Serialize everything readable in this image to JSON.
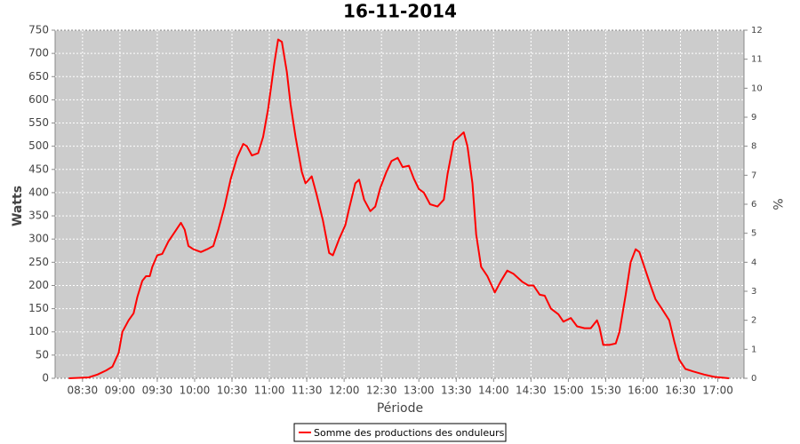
{
  "chart_data": {
    "type": "line",
    "title": "16-11-2014",
    "x_label": "Période",
    "y_label": "Watts",
    "y2_label": "%",
    "x": [
      "08:19",
      "08:35",
      "08:42",
      "08:49",
      "08:54",
      "08:59",
      "09:02",
      "09:07",
      "09:11",
      "09:14",
      "09:18",
      "09:21",
      "09:24",
      "09:26",
      "09:30",
      "09:34",
      "09:39",
      "09:44",
      "09:49",
      "09:52",
      "09:55",
      "09:59",
      "10:05",
      "10:10",
      "10:15",
      "10:19",
      "10:24",
      "10:29",
      "10:34",
      "10:39",
      "10:42",
      "10:46",
      "10:51",
      "10:55",
      "10:59",
      "11:04",
      "11:07",
      "11:10",
      "11:14",
      "11:17",
      "11:21",
      "11:26",
      "11:29",
      "11:34",
      "11:38",
      "11:43",
      "11:48",
      "11:51",
      "11:56",
      "12:01",
      "12:04",
      "12:09",
      "12:12",
      "12:16",
      "12:21",
      "12:25",
      "12:29",
      "12:34",
      "12:38",
      "12:43",
      "12:47",
      "12:52",
      "12:56",
      "13:00",
      "13:04",
      "13:09",
      "13:15",
      "13:20",
      "13:23",
      "13:28",
      "13:32",
      "13:36",
      "13:39",
      "13:43",
      "13:46",
      "13:50",
      "13:55",
      "14:01",
      "14:06",
      "14:11",
      "14:16",
      "14:23",
      "14:28",
      "14:32",
      "14:37",
      "14:41",
      "14:46",
      "14:52",
      "14:56",
      "15:02",
      "15:07",
      "15:13",
      "15:18",
      "15:23",
      "15:25",
      "15:28",
      "15:33",
      "15:38",
      "15:41",
      "15:46",
      "15:50",
      "15:54",
      "15:57",
      "16:01",
      "16:06",
      "16:10",
      "16:15",
      "16:21",
      "16:25",
      "16:29",
      "16:34",
      "16:40",
      "16:49",
      "16:57",
      "17:09"
    ],
    "series": [
      {
        "name": "Somme des productions des onduleurs",
        "color": "#ff0000",
        "values": [
          0,
          2,
          8,
          17,
          25,
          55,
          100,
          125,
          140,
          175,
          210,
          220,
          220,
          240,
          265,
          268,
          295,
          315,
          335,
          320,
          285,
          278,
          272,
          278,
          285,
          320,
          370,
          430,
          475,
          505,
          500,
          480,
          485,
          520,
          580,
          680,
          730,
          725,
          660,
          590,
          520,
          445,
          420,
          435,
          395,
          340,
          270,
          265,
          300,
          330,
          365,
          420,
          428,
          385,
          360,
          370,
          410,
          445,
          468,
          475,
          455,
          458,
          430,
          408,
          400,
          375,
          370,
          385,
          440,
          510,
          520,
          530,
          500,
          420,
          310,
          240,
          220,
          185,
          210,
          232,
          225,
          208,
          200,
          200,
          180,
          178,
          150,
          138,
          122,
          130,
          112,
          108,
          108,
          125,
          110,
          72,
          72,
          75,
          100,
          180,
          250,
          278,
          272,
          240,
          200,
          170,
          150,
          125,
          80,
          40,
          20,
          15,
          8,
          3,
          0
        ]
      }
    ],
    "xlim": [
      "08:08",
      "17:21"
    ],
    "xticks": [
      "08:30",
      "09:00",
      "09:30",
      "10:00",
      "10:30",
      "11:00",
      "11:30",
      "12:00",
      "12:30",
      "13:00",
      "13:30",
      "14:00",
      "14:30",
      "15:00",
      "15:30",
      "16:00",
      "16:30",
      "17:00"
    ],
    "ylim": [
      0,
      750
    ],
    "yticks": [
      0,
      50,
      100,
      150,
      200,
      250,
      300,
      350,
      400,
      450,
      500,
      550,
      600,
      650,
      700,
      750
    ],
    "y2lim": [
      0,
      12
    ],
    "y2ticks": [
      0,
      1,
      2,
      3,
      4,
      5,
      6,
      7,
      8,
      9,
      10,
      11,
      12
    ],
    "grid": true,
    "legend": "bottom"
  }
}
